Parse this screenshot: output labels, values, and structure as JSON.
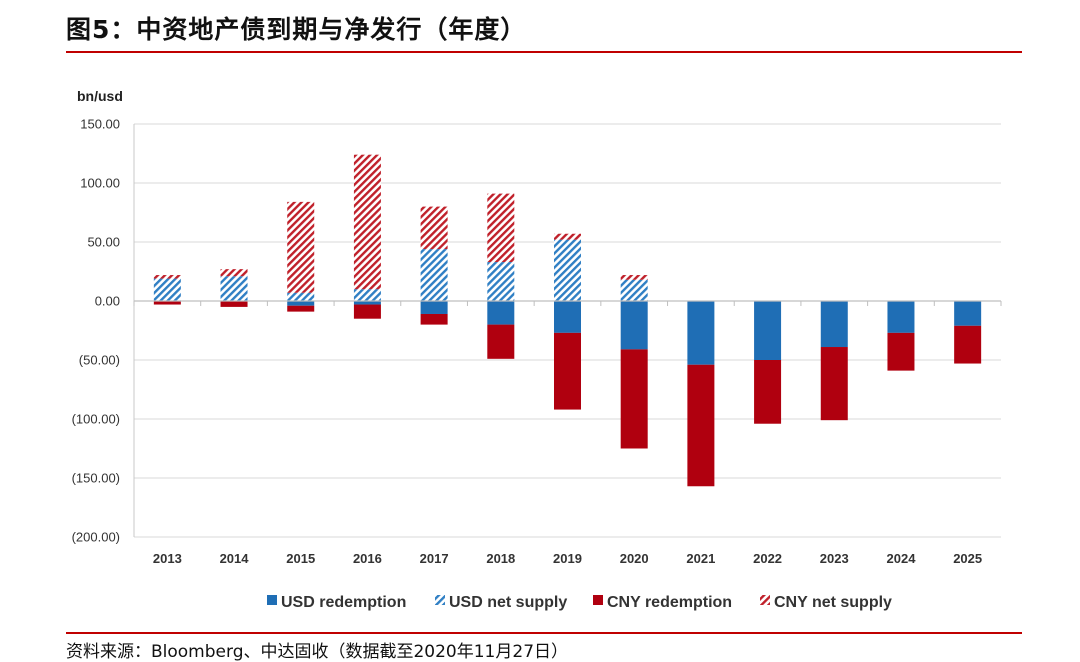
{
  "figure": {
    "title": "图5：中资地产债到期与净发行（年度）",
    "source": "资料来源：Bloomberg、中达固收（数据截至2020年11月27日）"
  },
  "chart_data": {
    "type": "bar",
    "stacked": true,
    "title": "",
    "ylabel": "bn/usd",
    "xlabel": "",
    "ylim": [
      -200,
      150
    ],
    "yticks": [
      150,
      100,
      50,
      0,
      -50,
      -100,
      -150,
      -200
    ],
    "ytick_labels": [
      "150.00",
      "100.00",
      "50.00",
      "0.00",
      "(50.00)",
      "(100.00)",
      "(150.00)",
      "(200.00)"
    ],
    "grid": true,
    "legend_position": "bottom",
    "categories": [
      "2013",
      "2014",
      "2015",
      "2016",
      "2017",
      "2018",
      "2019",
      "2020",
      "2021",
      "2022",
      "2023",
      "2024",
      "2025"
    ],
    "series": [
      {
        "name": "USD redemption",
        "color": "#1f6eb5",
        "pattern": "solid",
        "values": [
          0,
          0,
          -4,
          -3,
          -11,
          -20,
          -27,
          -41,
          -54,
          -50,
          -39,
          -27,
          -21
        ]
      },
      {
        "name": "USD net supply",
        "color": "#3a83c6",
        "pattern": "hatch",
        "values": [
          19,
          21,
          7,
          10,
          44,
          33,
          52,
          18,
          0,
          0,
          0,
          0,
          0
        ]
      },
      {
        "name": "CNY redemption",
        "color": "#b0000f",
        "pattern": "solid",
        "values": [
          -3,
          -5,
          -5,
          -12,
          -9,
          -29,
          -65,
          -84,
          -103,
          -54,
          -62,
          -32,
          -32
        ]
      },
      {
        "name": "CNY net supply",
        "color": "#c0202a",
        "pattern": "hatch",
        "values": [
          3,
          6,
          77,
          114,
          36,
          58,
          5,
          4,
          0,
          0,
          0,
          0,
          0
        ]
      }
    ]
  }
}
